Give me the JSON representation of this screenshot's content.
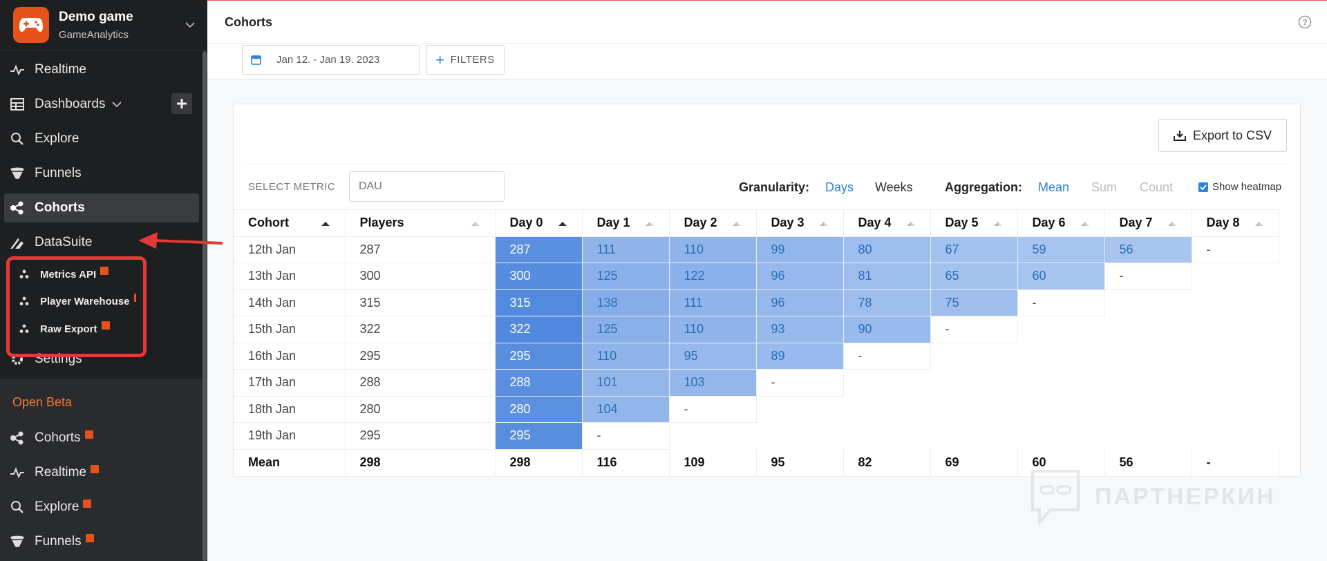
{
  "sidebar": {
    "app_name": "Demo game",
    "app_subtitle": "GameAnalytics",
    "nav": [
      {
        "label": "Realtime",
        "icon": "pulse-icon"
      },
      {
        "label": "Dashboards",
        "icon": "grid-icon"
      },
      {
        "label": "Explore",
        "icon": "search-icon"
      },
      {
        "label": "Funnels",
        "icon": "funnel-icon"
      },
      {
        "label": "Cohorts",
        "icon": "cohorts-icon"
      },
      {
        "label": "DataSuite",
        "icon": "datasuite-icon"
      },
      {
        "label": "Settings",
        "icon": "gear-icon"
      }
    ],
    "datasuite_sub": [
      {
        "label": "Metrics API"
      },
      {
        "label": "Player Warehouse"
      },
      {
        "label": "Raw Export"
      }
    ],
    "beta_label": "Open Beta",
    "beta_nav": [
      {
        "label": "Cohorts"
      },
      {
        "label": "Realtime"
      },
      {
        "label": "Explore"
      },
      {
        "label": "Funnels"
      }
    ]
  },
  "header": {
    "title": "Cohorts",
    "date_range": "Jan 12. - Jan 19. 2023",
    "filters_label": "FILTERS"
  },
  "card": {
    "export_label": "Export to CSV",
    "select_metric_label": "SELECT METRIC",
    "metric_placeholder": "DAU",
    "granularity_label": "Granularity:",
    "granularity_options": [
      "Days",
      "Weeks"
    ],
    "aggregation_label": "Aggregation:",
    "aggregation_options": [
      "Mean",
      "Sum",
      "Count"
    ],
    "heatmap_label": "Show heatmap",
    "accent_color": "#2a84d8"
  },
  "table": {
    "headers": [
      "Cohort",
      "Players",
      "Day 0",
      "Day 1",
      "Day 2",
      "Day 3",
      "Day 4",
      "Day 5",
      "Day 6",
      "Day 7",
      "Day 8"
    ],
    "rows": [
      {
        "cohort": "12th Jan",
        "players": "287",
        "days": [
          "287",
          "111",
          "110",
          "99",
          "80",
          "67",
          "59",
          "56",
          "-"
        ]
      },
      {
        "cohort": "13th Jan",
        "players": "300",
        "days": [
          "300",
          "125",
          "122",
          "96",
          "81",
          "65",
          "60",
          "-"
        ]
      },
      {
        "cohort": "14th Jan",
        "players": "315",
        "days": [
          "315",
          "138",
          "111",
          "96",
          "78",
          "75",
          "-"
        ]
      },
      {
        "cohort": "15th Jan",
        "players": "322",
        "days": [
          "322",
          "125",
          "110",
          "93",
          "90",
          "-"
        ]
      },
      {
        "cohort": "16th Jan",
        "players": "295",
        "days": [
          "295",
          "110",
          "95",
          "89",
          "-"
        ]
      },
      {
        "cohort": "17th Jan",
        "players": "288",
        "days": [
          "288",
          "101",
          "103",
          "-"
        ]
      },
      {
        "cohort": "18th Jan",
        "players": "280",
        "days": [
          "280",
          "104",
          "-"
        ]
      },
      {
        "cohort": "19th Jan",
        "players": "295",
        "days": [
          "295",
          "-"
        ]
      }
    ],
    "mean": {
      "label": "Mean",
      "players": "298",
      "days": [
        "298",
        "116",
        "109",
        "95",
        "82",
        "69",
        "60",
        "56",
        "-"
      ]
    }
  },
  "watermark": "ПАРТНЕРКИН"
}
